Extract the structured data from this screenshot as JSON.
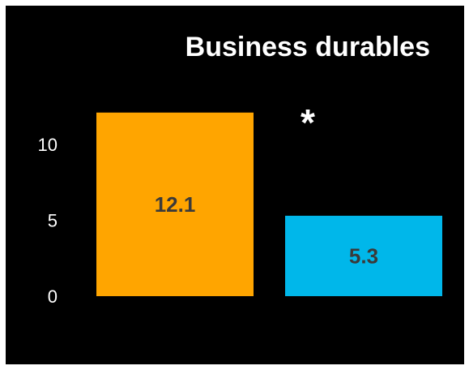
{
  "chart_data": {
    "type": "bar",
    "title": "Business durables",
    "categories": [
      "",
      ""
    ],
    "values": [
      12.1,
      5.3
    ],
    "value_labels": [
      "12.1",
      "5.3"
    ],
    "colors": [
      "#ffa500",
      "#00b7ea"
    ],
    "yticks": [
      0,
      5,
      10
    ],
    "ytick_labels": [
      "0",
      "5",
      "10"
    ],
    "ylim": [
      0,
      12.4
    ],
    "annotation": "*",
    "grid": false,
    "legend": "none",
    "background": "#000000",
    "text_color": "#ffffff",
    "label_color": "#3a3a3a"
  }
}
